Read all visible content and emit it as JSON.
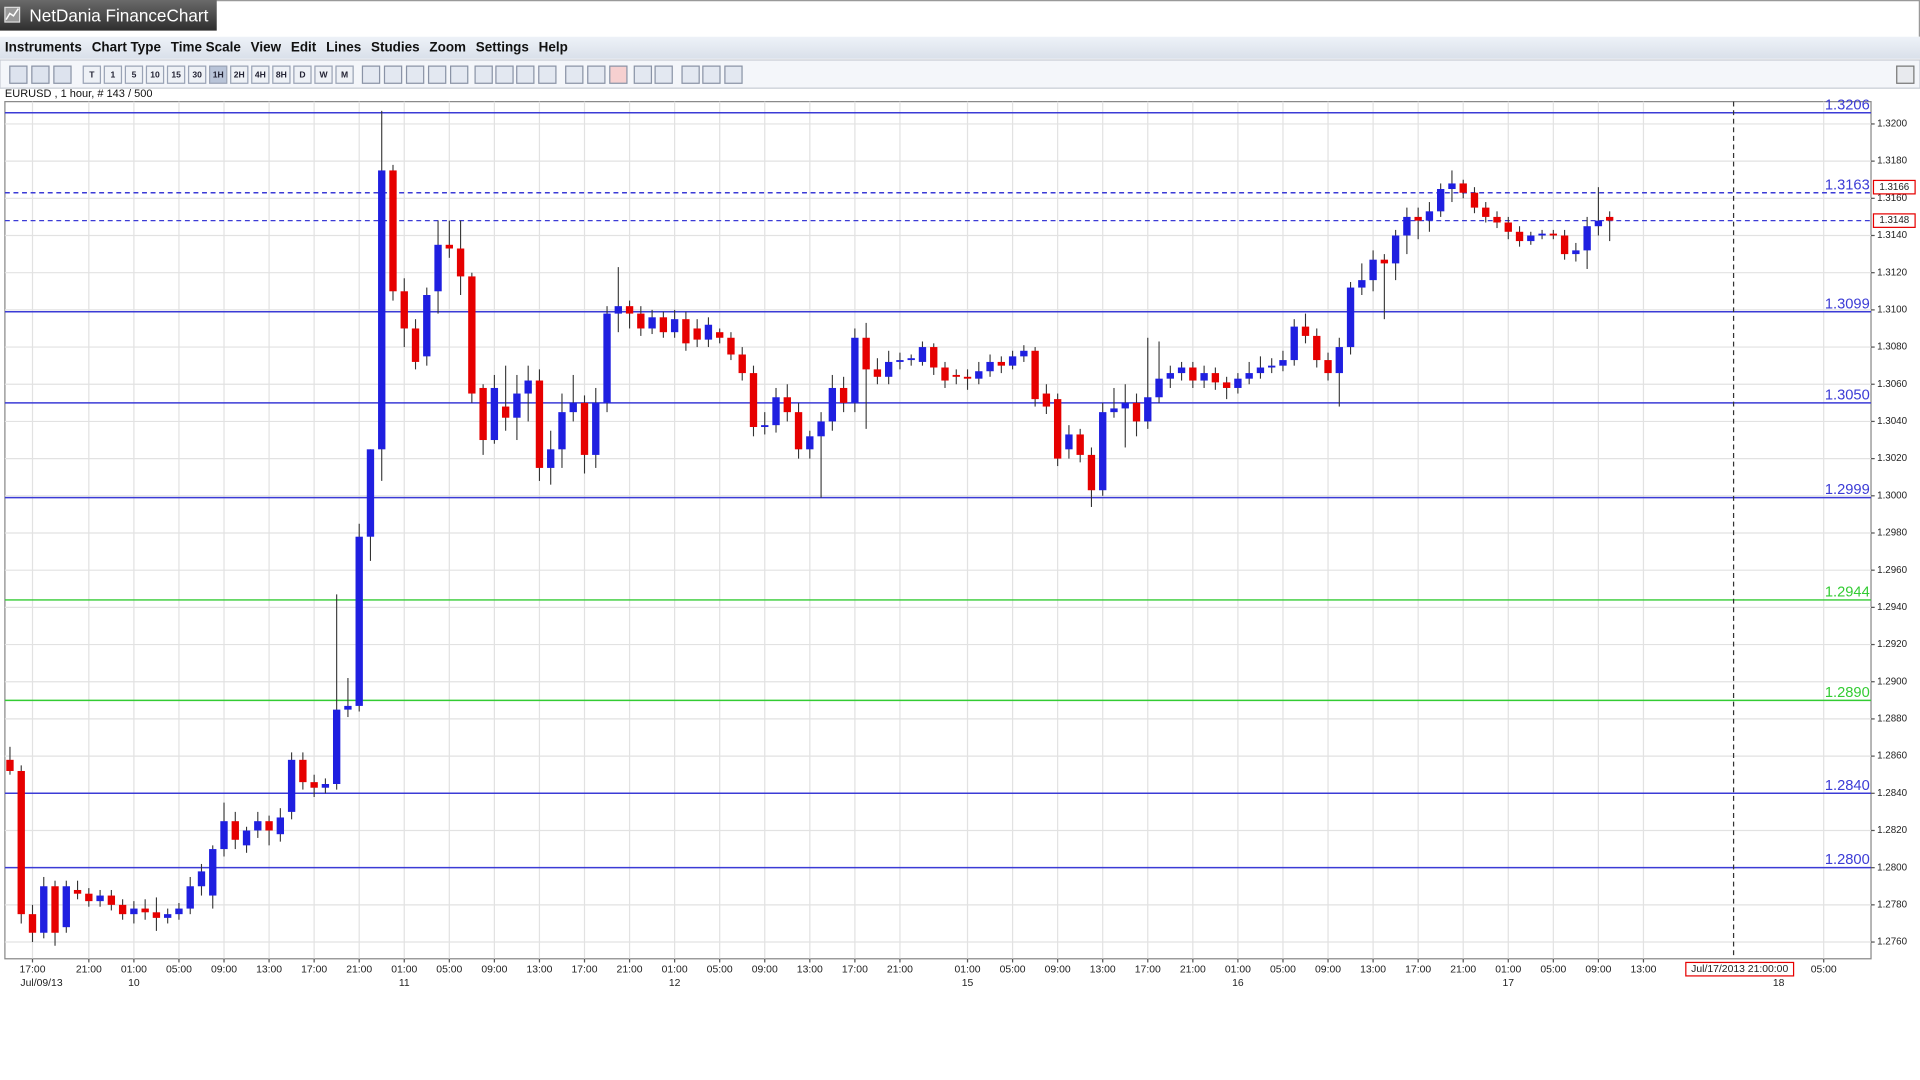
{
  "window": {
    "title": "NetDania FinanceChart"
  },
  "menu": [
    "Instruments",
    "Chart Type",
    "Time Scale",
    "View",
    "Edit",
    "Lines",
    "Studies",
    "Zoom",
    "Settings",
    "Help"
  ],
  "toolbar": [
    "T",
    "1",
    "5",
    "10",
    "15",
    "30",
    "1H",
    "2H",
    "4H",
    "8H",
    "D",
    "W",
    "M"
  ],
  "chart_data": {
    "type": "candlestick",
    "title": "EURUSD , 1 hour, # 143 / 500",
    "up_color": "#1f1fe0",
    "down_color": "#e60000",
    "grid": true,
    "xlim": [
      -0.45,
      165.2
    ],
    "ylim": [
      1.2751,
      1.3212
    ],
    "yticks": [
      {
        "value": 1.276,
        "label": "1.2760"
      },
      {
        "value": 1.278,
        "label": "1.2780"
      },
      {
        "value": 1.28,
        "label": "1.2800"
      },
      {
        "value": 1.282,
        "label": "1.2820"
      },
      {
        "value": 1.284,
        "label": "1.2840"
      },
      {
        "value": 1.286,
        "label": "1.2860"
      },
      {
        "value": 1.288,
        "label": "1.2880"
      },
      {
        "value": 1.29,
        "label": "1.2900"
      },
      {
        "value": 1.292,
        "label": "1.2920"
      },
      {
        "value": 1.294,
        "label": "1.2940"
      },
      {
        "value": 1.296,
        "label": "1.2960"
      },
      {
        "value": 1.298,
        "label": "1.2980"
      },
      {
        "value": 1.3,
        "label": "1.3000"
      },
      {
        "value": 1.302,
        "label": "1.3020"
      },
      {
        "value": 1.304,
        "label": "1.3040"
      },
      {
        "value": 1.306,
        "label": "1.3060"
      },
      {
        "value": 1.308,
        "label": "1.3080"
      },
      {
        "value": 1.31,
        "label": "1.3100"
      },
      {
        "value": 1.312,
        "label": "1.3120"
      },
      {
        "value": 1.314,
        "label": "1.3140"
      },
      {
        "value": 1.316,
        "label": "1.3160"
      },
      {
        "value": 1.318,
        "label": "1.3180"
      },
      {
        "value": 1.32,
        "label": "1.3200"
      }
    ],
    "xticks": [
      {
        "value": 2,
        "label": "17:00"
      },
      {
        "value": 7,
        "label": "21:00"
      },
      {
        "value": 11,
        "label": "01:00"
      },
      {
        "value": 15,
        "label": "05:00"
      },
      {
        "value": 19,
        "label": "09:00"
      },
      {
        "value": 23,
        "label": "13:00"
      },
      {
        "value": 27,
        "label": "17:00"
      },
      {
        "value": 31,
        "label": "21:00"
      },
      {
        "value": 35,
        "label": "01:00"
      },
      {
        "value": 39,
        "label": "05:00"
      },
      {
        "value": 43,
        "label": "09:00"
      },
      {
        "value": 47,
        "label": "13:00"
      },
      {
        "value": 51,
        "label": "17:00"
      },
      {
        "value": 55,
        "label": "21:00"
      },
      {
        "value": 59,
        "label": "01:00"
      },
      {
        "value": 63,
        "label": "05:00"
      },
      {
        "value": 67,
        "label": "09:00"
      },
      {
        "value": 71,
        "label": "13:00"
      },
      {
        "value": 75,
        "label": "17:00"
      },
      {
        "value": 79,
        "label": "21:00"
      },
      {
        "value": 85,
        "label": "01:00"
      },
      {
        "value": 89,
        "label": "05:00"
      },
      {
        "value": 93,
        "label": "09:00"
      },
      {
        "value": 97,
        "label": "13:00"
      },
      {
        "value": 101,
        "label": "17:00"
      },
      {
        "value": 105,
        "label": "21:00"
      },
      {
        "value": 109,
        "label": "01:00"
      },
      {
        "value": 113,
        "label": "05:00"
      },
      {
        "value": 117,
        "label": "09:00"
      },
      {
        "value": 121,
        "label": "13:00"
      },
      {
        "value": 125,
        "label": "17:00"
      },
      {
        "value": 129,
        "label": "21:00"
      },
      {
        "value": 133,
        "label": "01:00"
      },
      {
        "value": 137,
        "label": "05:00"
      },
      {
        "value": 141,
        "label": "09:00"
      },
      {
        "value": 145,
        "label": "13:00"
      },
      {
        "value": 161,
        "label": "05:00"
      }
    ],
    "day_labels": [
      {
        "value": 2.8,
        "label": "Jul/09/13"
      },
      {
        "value": 11,
        "label": "10"
      },
      {
        "value": 35,
        "label": "11"
      },
      {
        "value": 59,
        "label": "12"
      },
      {
        "value": 85,
        "label": "15"
      },
      {
        "value": 109,
        "label": "16"
      },
      {
        "value": 133,
        "label": "17"
      },
      {
        "value": 157,
        "label": "18"
      }
    ],
    "levels": [
      {
        "value": 1.3206,
        "color": "#3b3bd6",
        "dashed": false
      },
      {
        "value": 1.3163,
        "color": "#3b3bd6",
        "dashed": true
      },
      {
        "value": 1.3099,
        "color": "#3b3bd6",
        "dashed": false
      },
      {
        "value": 1.305,
        "label": "1.3050",
        "color": "#3b3bd6",
        "dashed": false
      },
      {
        "value": 1.2999,
        "color": "#3b3bd6",
        "dashed": false
      },
      {
        "value": 1.2944,
        "color": "#33cc33",
        "dashed": false
      },
      {
        "value": 1.289,
        "label": "1.2890",
        "color": "#33cc33",
        "dashed": false
      },
      {
        "value": 1.284,
        "label": "1.2840",
        "color": "#3b3bd6",
        "dashed": false
      },
      {
        "value": 1.28,
        "label": "1.2800",
        "color": "#3b3bd6",
        "dashed": false
      }
    ],
    "price_tags": [
      1.3166,
      1.3148
    ],
    "cursor": {
      "value": 153,
      "label": "Jul/17/2013 21:00:00"
    },
    "candles": [
      [
        1.2858,
        1.2865,
        1.285,
        1.2852
      ],
      [
        1.2852,
        1.2855,
        1.277,
        1.2775
      ],
      [
        1.2775,
        1.278,
        1.276,
        1.2765
      ],
      [
        1.2765,
        1.2795,
        1.2762,
        1.279
      ],
      [
        1.279,
        1.2793,
        1.2758,
        1.2765
      ],
      [
        1.2768,
        1.2793,
        1.2765,
        1.279
      ],
      [
        1.2788,
        1.2793,
        1.2783,
        1.2786
      ],
      [
        1.2786,
        1.2789,
        1.2779,
        1.2782
      ],
      [
        1.2782,
        1.2788,
        1.2779,
        1.2785
      ],
      [
        1.2785,
        1.2788,
        1.2777,
        1.278
      ],
      [
        1.278,
        1.2783,
        1.2772,
        1.2775
      ],
      [
        1.2775,
        1.2782,
        1.277,
        1.2778
      ],
      [
        1.2778,
        1.2783,
        1.2772,
        1.2776
      ],
      [
        1.2776,
        1.2784,
        1.2766,
        1.2773
      ],
      [
        1.2773,
        1.2778,
        1.277,
        1.2775
      ],
      [
        1.2775,
        1.2781,
        1.2772,
        1.2778
      ],
      [
        1.2778,
        1.2795,
        1.2775,
        1.279
      ],
      [
        1.279,
        1.2802,
        1.2785,
        1.2798
      ],
      [
        1.2785,
        1.2812,
        1.2778,
        1.281
      ],
      [
        1.281,
        1.2835,
        1.2806,
        1.2825
      ],
      [
        1.2825,
        1.283,
        1.281,
        1.2815
      ],
      [
        1.2812,
        1.2822,
        1.2808,
        1.282
      ],
      [
        1.282,
        1.283,
        1.2816,
        1.2825
      ],
      [
        1.2825,
        1.2828,
        1.2812,
        1.282
      ],
      [
        1.2818,
        1.2832,
        1.2814,
        1.2827
      ],
      [
        1.283,
        1.2862,
        1.2826,
        1.2858
      ],
      [
        1.2858,
        1.2862,
        1.2842,
        1.2846
      ],
      [
        1.2846,
        1.285,
        1.2838,
        1.2843
      ],
      [
        1.2843,
        1.2848,
        1.284,
        1.2845
      ],
      [
        1.2845,
        1.2947,
        1.2842,
        1.2885
      ],
      [
        1.2885,
        1.2902,
        1.2881,
        1.2887
      ],
      [
        1.2887,
        1.2985,
        1.2884,
        1.2978
      ],
      [
        1.2978,
        1.3025,
        1.2965,
        1.3025
      ],
      [
        1.3025,
        1.3207,
        1.3008,
        1.3175
      ],
      [
        1.3175,
        1.3178,
        1.3105,
        1.311
      ],
      [
        1.311,
        1.3117,
        1.308,
        1.309
      ],
      [
        1.309,
        1.3095,
        1.3068,
        1.3072
      ],
      [
        1.3075,
        1.3112,
        1.307,
        1.3108
      ],
      [
        1.311,
        1.3148,
        1.3098,
        1.3135
      ],
      [
        1.3135,
        1.3148,
        1.3128,
        1.3133
      ],
      [
        1.3133,
        1.3148,
        1.3108,
        1.3118
      ],
      [
        1.3118,
        1.312,
        1.305,
        1.3055
      ],
      [
        1.3058,
        1.306,
        1.3022,
        1.303
      ],
      [
        1.303,
        1.3065,
        1.3028,
        1.3058
      ],
      [
        1.3048,
        1.307,
        1.3035,
        1.3042
      ],
      [
        1.3042,
        1.3065,
        1.303,
        1.3055
      ],
      [
        1.3055,
        1.307,
        1.304,
        1.3062
      ],
      [
        1.3062,
        1.3068,
        1.3008,
        1.3015
      ],
      [
        1.3015,
        1.3035,
        1.3006,
        1.3025
      ],
      [
        1.3025,
        1.3055,
        1.3015,
        1.3045
      ],
      [
        1.3045,
        1.3065,
        1.304,
        1.305
      ],
      [
        1.305,
        1.3054,
        1.3012,
        1.3022
      ],
      [
        1.3022,
        1.3058,
        1.3015,
        1.305
      ],
      [
        1.305,
        1.3102,
        1.3045,
        1.3098
      ],
      [
        1.3098,
        1.3123,
        1.3088,
        1.3102
      ],
      [
        1.3102,
        1.3105,
        1.309,
        1.3098
      ],
      [
        1.3098,
        1.3102,
        1.3086,
        1.309
      ],
      [
        1.309,
        1.31,
        1.3087,
        1.3096
      ],
      [
        1.3096,
        1.3099,
        1.3085,
        1.3088
      ],
      [
        1.3088,
        1.31,
        1.3085,
        1.3095
      ],
      [
        1.3095,
        1.3099,
        1.3078,
        1.3082
      ],
      [
        1.309,
        1.3095,
        1.308,
        1.3084
      ],
      [
        1.3084,
        1.3096,
        1.308,
        1.3092
      ],
      [
        1.3088,
        1.309,
        1.3082,
        1.3085
      ],
      [
        1.3085,
        1.3088,
        1.3073,
        1.3076
      ],
      [
        1.3076,
        1.308,
        1.3062,
        1.3066
      ],
      [
        1.3066,
        1.307,
        1.3032,
        1.3037
      ],
      [
        1.3037,
        1.3045,
        1.3033,
        1.3038
      ],
      [
        1.3038,
        1.3058,
        1.3034,
        1.3053
      ],
      [
        1.3053,
        1.306,
        1.304,
        1.3045
      ],
      [
        1.3045,
        1.305,
        1.302,
        1.3025
      ],
      [
        1.3025,
        1.3035,
        1.302,
        1.3032
      ],
      [
        1.3032,
        1.3045,
        1.2999,
        1.304
      ],
      [
        1.304,
        1.3065,
        1.3035,
        1.3058
      ],
      [
        1.3058,
        1.3064,
        1.3045,
        1.305
      ],
      [
        1.305,
        1.309,
        1.3045,
        1.3085
      ],
      [
        1.3085,
        1.3093,
        1.3036,
        1.3068
      ],
      [
        1.3068,
        1.3074,
        1.306,
        1.3064
      ],
      [
        1.3064,
        1.3078,
        1.306,
        1.3072
      ],
      [
        1.3072,
        1.3077,
        1.3068,
        1.3073
      ],
      [
        1.3073,
        1.3076,
        1.307,
        1.3074
      ],
      [
        1.3072,
        1.3083,
        1.307,
        1.308
      ],
      [
        1.308,
        1.3082,
        1.3065,
        1.3069
      ],
      [
        1.3069,
        1.3072,
        1.3058,
        1.3062
      ],
      [
        1.3065,
        1.3068,
        1.306,
        1.3064
      ],
      [
        1.3064,
        1.3068,
        1.3057,
        1.3063
      ],
      [
        1.3063,
        1.3072,
        1.306,
        1.3067
      ],
      [
        1.3067,
        1.3076,
        1.3064,
        1.3072
      ],
      [
        1.3072,
        1.3075,
        1.3066,
        1.307
      ],
      [
        1.307,
        1.3078,
        1.3068,
        1.3075
      ],
      [
        1.3075,
        1.3081,
        1.3072,
        1.3078
      ],
      [
        1.3078,
        1.308,
        1.3048,
        1.3052
      ],
      [
        1.3055,
        1.306,
        1.3044,
        1.3048
      ],
      [
        1.3052,
        1.3055,
        1.3016,
        1.302
      ],
      [
        1.3025,
        1.3038,
        1.302,
        1.3033
      ],
      [
        1.3033,
        1.3036,
        1.3018,
        1.3022
      ],
      [
        1.3022,
        1.3026,
        1.2994,
        1.3003
      ],
      [
        1.3003,
        1.305,
        1.3,
        1.3045
      ],
      [
        1.3045,
        1.3058,
        1.3042,
        1.3047
      ],
      [
        1.3047,
        1.306,
        1.3026,
        1.305
      ],
      [
        1.305,
        1.3055,
        1.3032,
        1.304
      ],
      [
        1.304,
        1.3085,
        1.3036,
        1.3053
      ],
      [
        1.3053,
        1.3083,
        1.305,
        1.3063
      ],
      [
        1.3063,
        1.307,
        1.3058,
        1.3066
      ],
      [
        1.3066,
        1.3072,
        1.3062,
        1.3069
      ],
      [
        1.3069,
        1.3072,
        1.3058,
        1.3062
      ],
      [
        1.3062,
        1.307,
        1.3058,
        1.3066
      ],
      [
        1.3066,
        1.3069,
        1.3057,
        1.3061
      ],
      [
        1.3061,
        1.3064,
        1.3052,
        1.3058
      ],
      [
        1.3058,
        1.3066,
        1.3055,
        1.3063
      ],
      [
        1.3063,
        1.3072,
        1.306,
        1.3066
      ],
      [
        1.3066,
        1.3075,
        1.3063,
        1.3069
      ],
      [
        1.3069,
        1.3074,
        1.3066,
        1.307
      ],
      [
        1.307,
        1.3078,
        1.3067,
        1.3073
      ],
      [
        1.3073,
        1.3095,
        1.307,
        1.3091
      ],
      [
        1.3091,
        1.3098,
        1.3082,
        1.3086
      ],
      [
        1.3086,
        1.309,
        1.3069,
        1.3073
      ],
      [
        1.3073,
        1.3077,
        1.3062,
        1.3066
      ],
      [
        1.3066,
        1.3085,
        1.3048,
        1.308
      ],
      [
        1.308,
        1.3115,
        1.3076,
        1.3112
      ],
      [
        1.3112,
        1.3125,
        1.3108,
        1.3116
      ],
      [
        1.3116,
        1.3132,
        1.311,
        1.3127
      ],
      [
        1.3127,
        1.313,
        1.3095,
        1.3125
      ],
      [
        1.3125,
        1.3143,
        1.3116,
        1.314
      ],
      [
        1.314,
        1.3155,
        1.313,
        1.315
      ],
      [
        1.315,
        1.3155,
        1.3138,
        1.3148
      ],
      [
        1.3148,
        1.3158,
        1.3142,
        1.3153
      ],
      [
        1.3153,
        1.3168,
        1.315,
        1.3165
      ],
      [
        1.3165,
        1.3175,
        1.3158,
        1.3168
      ],
      [
        1.3168,
        1.317,
        1.316,
        1.3163
      ],
      [
        1.3163,
        1.3166,
        1.3152,
        1.3155
      ],
      [
        1.3155,
        1.3158,
        1.3147,
        1.315
      ],
      [
        1.315,
        1.3153,
        1.3144,
        1.3147
      ],
      [
        1.3147,
        1.315,
        1.3138,
        1.3142
      ],
      [
        1.3142,
        1.3145,
        1.3134,
        1.3137
      ],
      [
        1.3137,
        1.3142,
        1.3135,
        1.314
      ],
      [
        1.314,
        1.3143,
        1.3138,
        1.3141
      ],
      [
        1.3141,
        1.3143,
        1.3138,
        1.314
      ],
      [
        1.314,
        1.3143,
        1.3127,
        1.313
      ],
      [
        1.313,
        1.3136,
        1.3126,
        1.3132
      ],
      [
        1.3132,
        1.315,
        1.3122,
        1.3145
      ],
      [
        1.3145,
        1.3166,
        1.314,
        1.3148
      ],
      [
        1.315,
        1.3153,
        1.3137,
        1.3148
      ]
    ]
  }
}
